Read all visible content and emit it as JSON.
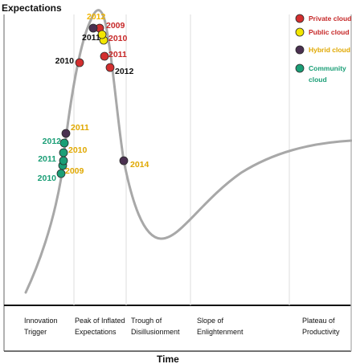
{
  "chart_data": {
    "type": "scatter",
    "y_axis_label": "Expectations",
    "x_axis_label": "Time",
    "phases": [
      {
        "lines": [
          "Innovation",
          "Trigger"
        ]
      },
      {
        "lines": [
          "Peak of Inflated",
          "Expectations"
        ]
      },
      {
        "lines": [
          "Trough of",
          "Disillusionment"
        ]
      },
      {
        "lines": [
          "Slope of",
          "Enlightenment"
        ]
      },
      {
        "lines": [
          "Plateau of",
          "Productivity"
        ]
      }
    ],
    "series": [
      {
        "name": "Private cloud",
        "color": "#d32f2f",
        "points": [
          {
            "year": "2009",
            "label_color": "#c62828"
          },
          {
            "year": "2010",
            "label_color": "#111111"
          },
          {
            "year": "2011",
            "label_color": "#c62828"
          },
          {
            "year": "2012",
            "label_color": "#111111"
          }
        ]
      },
      {
        "name": "Public cloud",
        "color": "#f2e600",
        "points": [
          {
            "year": "2010",
            "label_color": "#c62828"
          },
          {
            "year": "2012",
            "label_color": "#f0b400"
          }
        ]
      },
      {
        "name": "Hybrid cloud",
        "color": "#4a3050",
        "points": [
          {
            "year": "2011",
            "label_color": "#111111"
          },
          {
            "year": "2011",
            "label_color": "#e0a800"
          },
          {
            "year": "2014",
            "label_color": "#e0a800"
          }
        ]
      },
      {
        "name": "Community cloud",
        "color": "#1a9e76",
        "points": [
          {
            "year": "2009",
            "label_color": "#e0a800"
          },
          {
            "year": "2010",
            "label_color": "#e0a800"
          },
          {
            "year": "2010",
            "label_color": "#1a9e76"
          },
          {
            "year": "2011",
            "label_color": "#1a9e76"
          },
          {
            "year": "2012",
            "label_color": "#1a9e76"
          }
        ]
      }
    ],
    "legend": [
      {
        "lines": [
          "Private cloud"
        ],
        "color": "#d32f2f",
        "text_color": "#c62828"
      },
      {
        "lines": [
          "Public cloud"
        ],
        "color": "#f2e600",
        "text_color": "#c62828"
      },
      {
        "lines": [
          "Hybrid cloud"
        ],
        "color": "#4a3050",
        "text_color": "#e0a800"
      },
      {
        "lines": [
          "Community",
          "cloud"
        ],
        "color": "#1a9e76",
        "text_color": "#1a9e76"
      }
    ],
    "legend_position": "top-right",
    "curve_color": "#a8a8a8",
    "grid": "vertical phase dividers"
  }
}
